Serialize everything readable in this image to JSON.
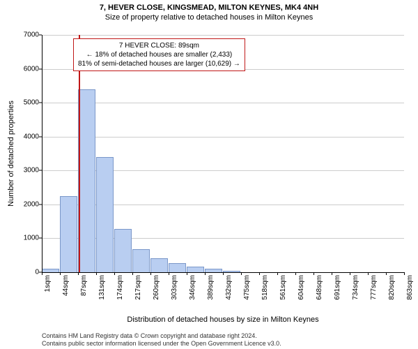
{
  "title": "7, HEVER CLOSE, KINGSMEAD, MILTON KEYNES, MK4 4NH",
  "subtitle": "Size of property relative to detached houses in Milton Keynes",
  "y_label": "Number of detached properties",
  "x_label": "Distribution of detached houses by size in Milton Keynes",
  "chart": {
    "type": "histogram",
    "bar_color": "#b9cef1",
    "bar_border": "#7a97c9",
    "grid_color": "#cccccc",
    "marker_color": "#c01717",
    "ylim": [
      0,
      7000
    ],
    "y_ticks": [
      0,
      1000,
      2000,
      3000,
      4000,
      5000,
      6000,
      7000
    ],
    "x_ticks": [
      1,
      44,
      87,
      131,
      174,
      217,
      260,
      303,
      346,
      389,
      432,
      475,
      518,
      561,
      604,
      648,
      691,
      734,
      777,
      820,
      863
    ],
    "x_unit": "sqm",
    "marker_x": 89,
    "bars": [
      {
        "x": 1,
        "v": 110
      },
      {
        "x": 44,
        "v": 2250
      },
      {
        "x": 87,
        "v": 5400
      },
      {
        "x": 131,
        "v": 3400
      },
      {
        "x": 174,
        "v": 1280
      },
      {
        "x": 217,
        "v": 680
      },
      {
        "x": 260,
        "v": 420
      },
      {
        "x": 303,
        "v": 260
      },
      {
        "x": 346,
        "v": 170
      },
      {
        "x": 389,
        "v": 110
      },
      {
        "x": 432,
        "v": 50
      },
      {
        "x": 475,
        "v": 0
      },
      {
        "x": 518,
        "v": 0
      },
      {
        "x": 561,
        "v": 0
      },
      {
        "x": 604,
        "v": 0
      },
      {
        "x": 648,
        "v": 0
      },
      {
        "x": 691,
        "v": 0
      },
      {
        "x": 734,
        "v": 0
      },
      {
        "x": 777,
        "v": 0
      },
      {
        "x": 820,
        "v": 0
      }
    ]
  },
  "info_box": {
    "line1": "7 HEVER CLOSE: 89sqm",
    "line2": "← 18% of detached houses are smaller (2,433)",
    "line3": "81% of semi-detached houses are larger (10,629) →"
  },
  "footer": {
    "line1": "Contains HM Land Registry data © Crown copyright and database right 2024.",
    "line2": "Contains public sector information licensed under the Open Government Licence v3.0."
  }
}
